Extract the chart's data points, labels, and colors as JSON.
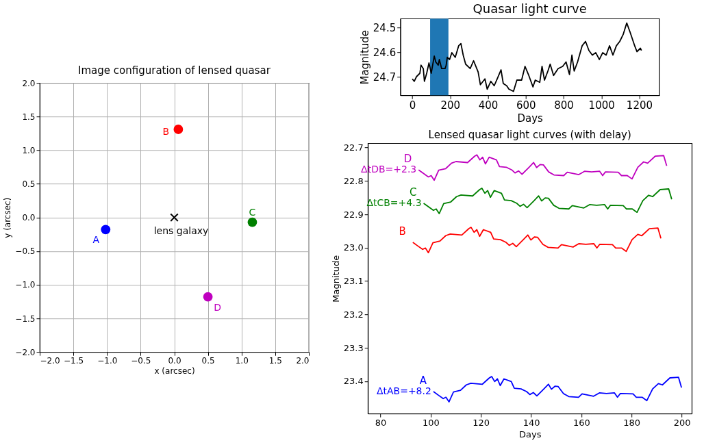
{
  "chart_data": [
    {
      "type": "scatter",
      "title": "Image configuration of lensed quasar",
      "xlabel": "x (arcsec)",
      "ylabel": "y (arcsec)",
      "xlim": [
        -2,
        2
      ],
      "ylim": [
        -2,
        2
      ],
      "xticks": [
        {
          "value": -2,
          "label": "−2.0"
        },
        {
          "value": -1.5,
          "label": "−1.5"
        },
        {
          "value": -1,
          "label": "−1.0"
        },
        {
          "value": -0.5,
          "label": "−0.5"
        },
        {
          "value": 0,
          "label": "0.0"
        },
        {
          "value": 0.5,
          "label": "0.5"
        },
        {
          "value": 1,
          "label": "1.0"
        },
        {
          "value": 1.5,
          "label": "1.5"
        },
        {
          "value": 2,
          "label": "2.0"
        }
      ],
      "yticks": [
        {
          "value": -2,
          "label": "−2.0"
        },
        {
          "value": -1.5,
          "label": "−1.5"
        },
        {
          "value": -1,
          "label": "−1.0"
        },
        {
          "value": -0.5,
          "label": "−0.5"
        },
        {
          "value": 0,
          "label": "0.0"
        },
        {
          "value": 0.5,
          "label": "0.5"
        },
        {
          "value": 1,
          "label": "1.0"
        },
        {
          "value": 1.5,
          "label": "1.5"
        },
        {
          "value": 2,
          "label": "2.0"
        }
      ],
      "grid": true,
      "marker": "circle",
      "series": [
        {
          "name": "A",
          "color": "#0000ff",
          "x": [
            -1.02
          ],
          "values": [
            -0.18
          ]
        },
        {
          "name": "B",
          "color": "#ff0000",
          "x": [
            0.06
          ],
          "values": [
            1.31
          ]
        },
        {
          "name": "C",
          "color": "#008000",
          "x": [
            1.16
          ],
          "values": [
            -0.07
          ]
        },
        {
          "name": "D",
          "color": "#bf00bf",
          "x": [
            0.5
          ],
          "values": [
            -1.18
          ]
        },
        {
          "name": "lens galaxy",
          "color": "#000000",
          "x": [
            0
          ],
          "values": [
            0
          ],
          "marker": "cross"
        }
      ]
    },
    {
      "type": "line",
      "title": "Quasar light curve",
      "xlabel": "Days",
      "ylabel": "Magnitude",
      "xlim": [
        -63,
        1306
      ],
      "ylim": [
        24.776,
        24.463
      ],
      "xticks": [
        0,
        200,
        400,
        600,
        800,
        1000,
        1200
      ],
      "yticks": [
        24.5,
        24.6,
        24.7
      ],
      "bands": [
        {
          "axis": "x",
          "from": 94,
          "to": 191,
          "color": "#1f77b4"
        }
      ],
      "series": [
        {
          "color": "#000000",
          "x": [
            0,
            10,
            22,
            40,
            46,
            58,
            64,
            76,
            88,
            100,
            116,
            124,
            137,
            143,
            155,
            173,
            179,
            185,
            197,
            209,
            227,
            245,
            257,
            269,
            282,
            306,
            324,
            348,
            360,
            384,
            396,
            415,
            433,
            451,
            469,
            481,
            499,
            511,
            535,
            553,
            578,
            596,
            614,
            638,
            650,
            674,
            686,
            699,
            717,
            729,
            747,
            771,
            795,
            813,
            831,
            844,
            856,
            874,
            898,
            916,
            934,
            952,
            970,
            989,
            1007,
            1025,
            1043,
            1061,
            1079,
            1097,
            1115,
            1134,
            1152,
            1176,
            1188,
            1206,
            1212
          ],
          "values": [
            24.709,
            24.719,
            24.7,
            24.686,
            24.653,
            24.667,
            24.719,
            24.686,
            24.644,
            24.686,
            24.616,
            24.64,
            24.653,
            24.63,
            24.667,
            24.667,
            24.653,
            24.621,
            24.63,
            24.602,
            24.621,
            24.574,
            24.565,
            24.612,
            24.649,
            24.667,
            24.635,
            24.681,
            24.733,
            24.709,
            24.751,
            24.719,
            24.737,
            24.705,
            24.672,
            24.728,
            24.737,
            24.751,
            24.76,
            24.714,
            24.714,
            24.658,
            24.691,
            24.742,
            24.714,
            24.723,
            24.658,
            24.714,
            24.677,
            24.649,
            24.695,
            24.667,
            24.658,
            24.64,
            24.691,
            24.612,
            24.677,
            24.64,
            24.574,
            24.556,
            24.593,
            24.612,
            24.602,
            24.63,
            24.602,
            24.612,
            24.574,
            24.612,
            24.574,
            24.556,
            24.528,
            24.481,
            24.519,
            24.574,
            24.598,
            24.584,
            24.593
          ]
        }
      ]
    },
    {
      "type": "line",
      "title": "Lensed quasar light curves (with delay)",
      "xlabel": "Days",
      "ylabel": "Magnitude",
      "xlim": [
        75,
        204
      ],
      "ylim": [
        23.497,
        22.687
      ],
      "xticks": [
        80,
        100,
        120,
        140,
        160,
        180,
        200
      ],
      "yticks": [
        22.7,
        22.8,
        22.9,
        {
          "value": 23,
          "label": "23.0"
        },
        23.1,
        23.2,
        23.3,
        23.4
      ],
      "annotations": [
        {
          "text": "ΔtDB=+2.3",
          "x": 95.2,
          "y": 22.767
        },
        {
          "text": "ΔtCB=+4.3",
          "x": 97.2,
          "y": 22.867
        },
        {
          "text": "ΔtAB=+8.2",
          "x": 101.1,
          "y": 23.431
        }
      ],
      "series": [
        {
          "name": "D",
          "color": "#bf00bf",
          "x": [
            95.2,
            97.2,
            99.1,
            100.2,
            101.4,
            103.2,
            106.0,
            108.3,
            110.1,
            114.7,
            117.5,
            118.4,
            119.6,
            120.7,
            121.8,
            123.3,
            126.2,
            127.4,
            130.1,
            132.3,
            133.6,
            135.0,
            136.4,
            139.2,
            141.0,
            142.2,
            143.6,
            144.9,
            147.0,
            149.1,
            153.0,
            154.4,
            159.0,
            161.3,
            164.1,
            167.3,
            168.5,
            169.6,
            174.7,
            176.0,
            178.3,
            180.2,
            182.5,
            184.8,
            186.4,
            189.4,
            192.8,
            194.0
          ],
          "values": [
            22.767,
            22.778,
            22.788,
            22.784,
            22.798,
            22.768,
            22.763,
            22.747,
            22.742,
            22.745,
            22.726,
            22.722,
            22.737,
            22.729,
            22.749,
            22.729,
            22.737,
            22.757,
            22.759,
            22.767,
            22.776,
            22.77,
            22.78,
            22.759,
            22.745,
            22.76,
            22.751,
            22.752,
            22.773,
            22.782,
            22.784,
            22.774,
            22.781,
            22.771,
            22.773,
            22.771,
            22.784,
            22.773,
            22.774,
            22.784,
            22.784,
            22.794,
            22.759,
            22.743,
            22.747,
            22.726,
            22.724,
            22.755
          ]
        },
        {
          "name": "C",
          "color": "#008000",
          "x": [
            97.2,
            99.2,
            101.1,
            102.2,
            103.4,
            105.2,
            108.0,
            110.3,
            112.1,
            116.7,
            119.5,
            120.4,
            121.6,
            122.7,
            123.8,
            125.3,
            128.2,
            129.4,
            132.1,
            134.3,
            135.6,
            137.0,
            138.4,
            141.2,
            143.0,
            144.2,
            145.6,
            146.9,
            149.0,
            151.1,
            155.0,
            156.4,
            161.0,
            163.3,
            166.1,
            169.3,
            170.5,
            171.6,
            176.7,
            178.0,
            180.3,
            182.2,
            184.5,
            186.8,
            188.4,
            191.4,
            194.8,
            196.0
          ],
          "values": [
            22.867,
            22.878,
            22.888,
            22.884,
            22.898,
            22.868,
            22.863,
            22.847,
            22.842,
            22.845,
            22.826,
            22.822,
            22.837,
            22.829,
            22.849,
            22.829,
            22.837,
            22.857,
            22.859,
            22.867,
            22.876,
            22.87,
            22.88,
            22.859,
            22.845,
            22.86,
            22.851,
            22.852,
            22.873,
            22.882,
            22.884,
            22.874,
            22.881,
            22.871,
            22.873,
            22.871,
            22.884,
            22.873,
            22.874,
            22.884,
            22.884,
            22.894,
            22.859,
            22.843,
            22.847,
            22.826,
            22.824,
            22.855
          ]
        },
        {
          "name": "B",
          "color": "#ff0000",
          "x": [
            92.9,
            94.9,
            96.8,
            97.9,
            99.1,
            100.9,
            103.7,
            106.0,
            107.8,
            112.4,
            115.2,
            116.1,
            117.3,
            118.4,
            119.5,
            121.0,
            123.9,
            125.1,
            127.8,
            130.0,
            131.3,
            132.7,
            134.1,
            136.9,
            138.7,
            139.9,
            141.3,
            142.6,
            144.7,
            146.8,
            150.7,
            152.1,
            156.7,
            159.0,
            161.8,
            165.0,
            166.2,
            167.3,
            172.4,
            173.7,
            176.0,
            177.9,
            180.2,
            182.5,
            184.1,
            187.1,
            190.5,
            191.7
          ],
          "values": [
            22.984,
            22.995,
            23.005,
            23.001,
            23.015,
            22.985,
            22.98,
            22.964,
            22.959,
            22.962,
            22.943,
            22.939,
            22.954,
            22.946,
            22.966,
            22.946,
            22.954,
            22.974,
            22.976,
            22.984,
            22.993,
            22.987,
            22.997,
            22.976,
            22.962,
            22.977,
            22.968,
            22.969,
            22.99,
            22.999,
            23.001,
            22.991,
            22.998,
            22.988,
            22.99,
            22.988,
            23.001,
            22.99,
            22.991,
            23.001,
            23.001,
            23.011,
            22.976,
            22.96,
            22.964,
            22.943,
            22.941,
            22.972
          ]
        },
        {
          "name": "A",
          "color": "#0000ff",
          "x": [
            101.1,
            103.1,
            105.0,
            106.1,
            107.3,
            109.1,
            111.9,
            114.2,
            116.0,
            120.6,
            123.4,
            124.3,
            125.5,
            126.6,
            127.7,
            129.2,
            132.1,
            133.3,
            136.0,
            138.2,
            139.5,
            140.9,
            142.3,
            145.1,
            146.9,
            148.1,
            149.5,
            150.8,
            152.9,
            155.0,
            158.9,
            160.3,
            164.9,
            167.2,
            170.0,
            173.2,
            174.4,
            175.5,
            180.6,
            181.9,
            184.2,
            186.1,
            188.4,
            190.7,
            192.3,
            195.3,
            198.7,
            199.9
          ],
          "values": [
            23.431,
            23.442,
            23.452,
            23.448,
            23.462,
            23.432,
            23.427,
            23.411,
            23.406,
            23.409,
            23.39,
            23.386,
            23.401,
            23.393,
            23.413,
            23.393,
            23.401,
            23.421,
            23.423,
            23.431,
            23.44,
            23.434,
            23.444,
            23.423,
            23.409,
            23.424,
            23.415,
            23.416,
            23.437,
            23.446,
            23.448,
            23.438,
            23.445,
            23.435,
            23.437,
            23.435,
            23.448,
            23.437,
            23.438,
            23.448,
            23.448,
            23.458,
            23.423,
            23.407,
            23.411,
            23.39,
            23.388,
            23.419
          ]
        }
      ]
    }
  ]
}
